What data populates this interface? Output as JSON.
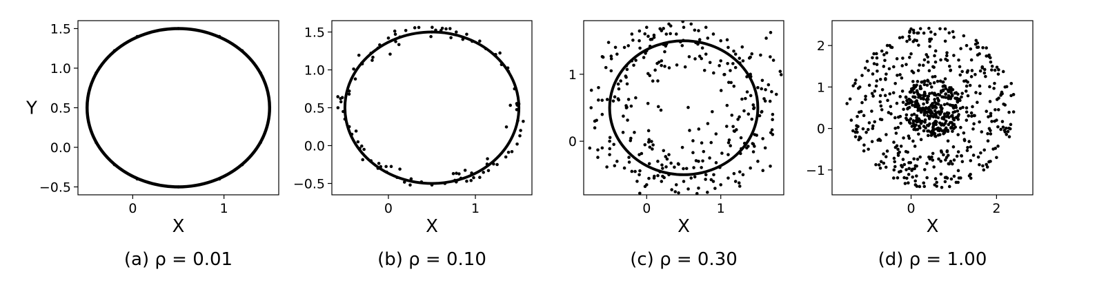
{
  "chart_data": [
    {
      "type": "scatter",
      "caption": "(a) ρ = 0.01",
      "rho": 0.01,
      "xlabel": "X",
      "ylabel": "Y",
      "xlim": [
        -0.6,
        1.6
      ],
      "ylim": [
        -0.6,
        1.6
      ],
      "xticks": [
        0,
        1
      ],
      "yticks": [
        -0.5,
        0.0,
        0.5,
        1.0,
        1.5
      ],
      "xtick_labels": [
        "0",
        "1"
      ],
      "ytick_labels": [
        "−0.5",
        "0.0",
        "0.5",
        "1.0",
        "1.5"
      ],
      "ring": {
        "cx": 0.5,
        "cy": 0.5,
        "r": 1.0
      },
      "series": [
        {
          "x": [
            1.5,
            1.4,
            1.2,
            0.95,
            0.5,
            0.05,
            -0.2,
            -0.4,
            -0.5,
            -0.4,
            -0.2,
            0.05,
            0.5,
            0.95,
            1.2,
            1.4
          ],
          "y": [
            0.5,
            0.94,
            1.22,
            1.4,
            1.5,
            1.4,
            1.22,
            0.94,
            0.5,
            0.06,
            -0.22,
            -0.4,
            -0.5,
            -0.4,
            -0.22,
            0.06
          ]
        }
      ]
    },
    {
      "type": "scatter",
      "caption": "(b) ρ = 0.10",
      "rho": 0.1,
      "xlabel": "X",
      "ylabel": "",
      "xlim": [
        -0.65,
        1.65
      ],
      "ylim": [
        -0.65,
        1.65
      ],
      "xticks": [
        0,
        1
      ],
      "yticks": [
        -0.5,
        0.0,
        0.5,
        1.0,
        1.5
      ],
      "xtick_labels": [
        "0",
        "1"
      ],
      "ytick_labels": [
        "−0.5",
        "0.0",
        "0.5",
        "1.0",
        "1.5"
      ],
      "ring": {
        "cx": 0.5,
        "cy": 0.5,
        "r": 1.0
      },
      "series": [
        {
          "x": [
            -0.58,
            -0.55,
            -0.5,
            -0.45,
            -0.42,
            -0.38,
            -0.3,
            -0.2,
            -0.1,
            0.0,
            0.08,
            0.2,
            0.35,
            0.5,
            0.62,
            0.78,
            0.9,
            1.05,
            1.12,
            1.22,
            1.3,
            1.38,
            1.45,
            1.5,
            1.55,
            1.52,
            1.48,
            1.42,
            1.35,
            1.25,
            1.15,
            1.05,
            0.9,
            0.78,
            0.65,
            0.5,
            0.38,
            0.25,
            0.1,
            -0.02,
            -0.12,
            -0.2,
            -0.28,
            -0.35,
            -0.45,
            -0.52
          ],
          "y": [
            0.5,
            0.62,
            0.35,
            0.72,
            0.15,
            0.88,
            1.08,
            1.22,
            1.33,
            1.42,
            1.47,
            1.52,
            1.56,
            1.5,
            1.55,
            1.5,
            1.47,
            1.38,
            1.28,
            1.2,
            1.07,
            0.98,
            0.75,
            0.55,
            0.32,
            0.2,
            0.02,
            -0.08,
            -0.15,
            -0.25,
            -0.33,
            -0.42,
            -0.47,
            -0.48,
            -0.5,
            -0.52,
            -0.48,
            -0.52,
            -0.42,
            -0.35,
            -0.3,
            -0.2,
            -0.05,
            0.05,
            0.25,
            0.45
          ]
        }
      ]
    },
    {
      "type": "scatter",
      "caption": "(c) ρ = 0.30",
      "rho": 0.3,
      "xlabel": "X",
      "ylabel": "",
      "xlim": [
        -0.85,
        1.85
      ],
      "ylim": [
        -0.8,
        1.8
      ],
      "xticks": [
        0,
        1
      ],
      "yticks": [
        0,
        1
      ],
      "xtick_labels": [
        "0",
        "1"
      ],
      "ytick_labels": [
        "0",
        "1"
      ],
      "ring": {
        "cx": 0.5,
        "cy": 0.5,
        "r": 1.0
      },
      "series": [
        {
          "x": [
            -0.75,
            -0.7,
            -0.65,
            -0.6,
            -0.55,
            -0.5,
            -0.45,
            -0.4,
            -0.3,
            -0.2,
            -0.1,
            0.0,
            0.1,
            0.2,
            0.3,
            0.4,
            0.5,
            0.6,
            0.7,
            0.8,
            0.9,
            1.0,
            1.1,
            1.2,
            1.3,
            1.4,
            1.5,
            1.6,
            1.7,
            1.75,
            1.7,
            1.6,
            1.5,
            1.4,
            1.3,
            1.2,
            1.1,
            1.0,
            0.9,
            0.8,
            0.7,
            0.6,
            0.5,
            0.4,
            0.3,
            0.2,
            0.1,
            0.0,
            -0.1,
            -0.2,
            -0.3,
            -0.4,
            -0.5,
            -0.6,
            -0.7,
            -0.2,
            0.0,
            0.2,
            0.8,
            1.0,
            1.2,
            -0.1,
            0.15,
            0.85,
            1.1,
            1.35,
            -0.35,
            1.45,
            0.3,
            0.7
          ],
          "y": [
            0.5,
            0.2,
            0.8,
            0.4,
            1.1,
            0.0,
            0.6,
            1.3,
            1.4,
            1.6,
            1.5,
            1.7,
            1.55,
            1.65,
            1.75,
            1.6,
            1.7,
            1.75,
            1.65,
            1.7,
            1.6,
            1.5,
            1.4,
            1.3,
            1.2,
            1.0,
            0.8,
            0.6,
            0.4,
            0.7,
            0.1,
            -0.1,
            -0.3,
            -0.4,
            -0.5,
            -0.6,
            -0.55,
            -0.65,
            -0.6,
            -0.5,
            -0.7,
            -0.55,
            -0.6,
            -0.65,
            -0.5,
            -0.6,
            -0.55,
            -0.65,
            -0.5,
            -0.45,
            -0.4,
            -0.3,
            -0.2,
            -0.1,
            0.3,
            1.2,
            1.35,
            1.2,
            1.3,
            1.2,
            1.1,
            -0.2,
            -0.3,
            -0.25,
            -0.2,
            -0.1,
            0.9,
            0.5,
            -0.2,
            -0.3
          ]
        }
      ]
    },
    {
      "type": "scatter",
      "caption": "(d) ρ = 1.00",
      "rho": 1.0,
      "xlabel": "X",
      "ylabel": "",
      "xlim": [
        -1.85,
        2.85
      ],
      "ylim": [
        -1.6,
        2.6
      ],
      "xticks": [
        0,
        2
      ],
      "yticks": [
        -1,
        0,
        1,
        2
      ],
      "xtick_labels": [
        "0",
        "2"
      ],
      "ytick_labels": [
        "−1",
        "0",
        "1",
        "2"
      ],
      "ring": null,
      "cluster_center": [
        0.5,
        0.5
      ],
      "series": [
        {
          "x": [
            0.5,
            0.4,
            0.6,
            0.3,
            0.7,
            0.45,
            0.55,
            0.35,
            0.65,
            0.5,
            -1.5,
            -1.2,
            -1.0,
            -0.8,
            -0.5,
            -0.2,
            0.0,
            0.3,
            0.8,
            1.0,
            1.3,
            1.6,
            1.9,
            2.2,
            2.4,
            2.3,
            2.0,
            1.7,
            1.4,
            1.1,
            0.9,
            0.6,
            0.2,
            -0.1,
            -0.4,
            -0.7,
            -1.0,
            -1.3,
            -1.4,
            -0.9,
            -0.3,
            0.1,
            0.7,
            1.2,
            1.8,
            2.1,
            -1.1,
            -0.6,
            0.0,
            0.4,
            0.9,
            1.5,
            2.0,
            1.0,
            0.2,
            -0.2
          ],
          "y": [
            0.5,
            0.4,
            0.6,
            0.45,
            0.55,
            0.3,
            0.7,
            0.5,
            0.4,
            0.6,
            0.6,
            1.0,
            1.4,
            1.7,
            2.0,
            2.2,
            2.4,
            2.3,
            2.4,
            2.2,
            2.0,
            1.8,
            1.5,
            1.0,
            0.4,
            -0.2,
            -0.7,
            -1.0,
            -1.2,
            -1.3,
            -1.4,
            -1.3,
            -1.4,
            -1.2,
            -1.0,
            -0.8,
            -0.5,
            -0.2,
            0.2,
            0.0,
            -0.6,
            -0.9,
            -1.1,
            -0.8,
            -0.3,
            0.8,
            -0.4,
            1.2,
            1.8,
            1.6,
            1.5,
            1.3,
            0.2,
            0.0,
            0.2,
            0.9
          ]
        }
      ]
    }
  ]
}
